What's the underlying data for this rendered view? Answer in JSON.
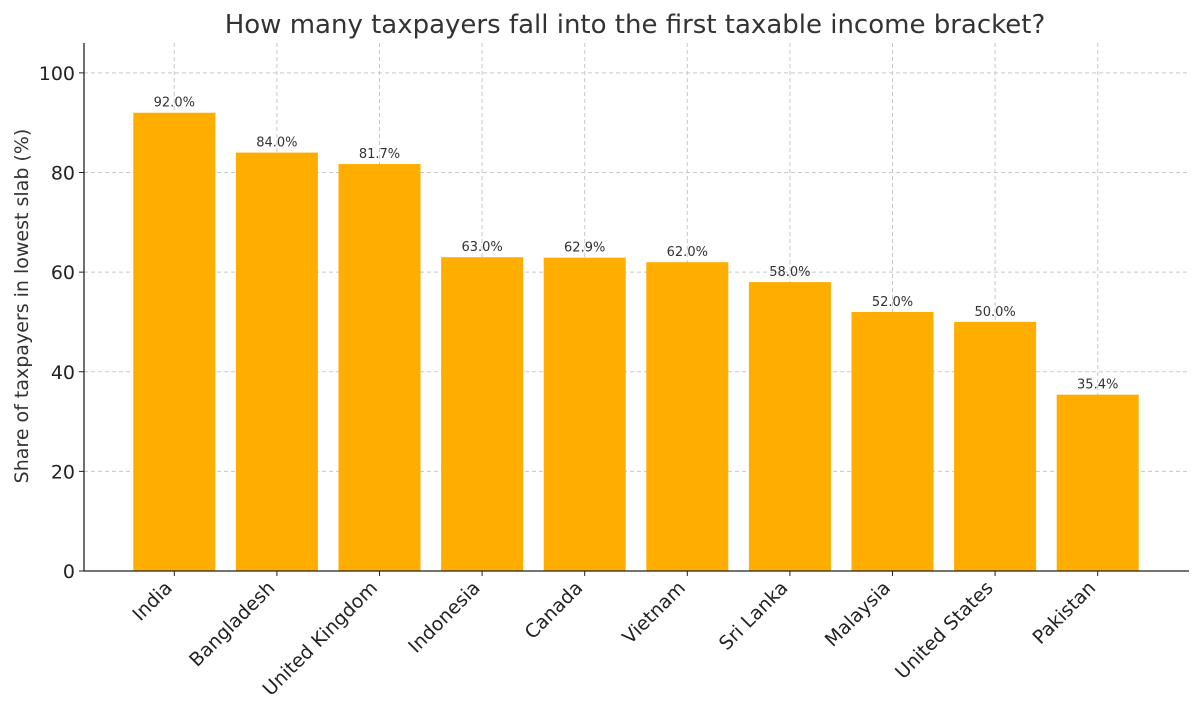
{
  "chart_data": {
    "type": "bar",
    "title": "How many taxpayers fall into the first taxable income bracket?",
    "xlabel": "",
    "ylabel": "Share of taxpayers in lowest slab (%)",
    "categories": [
      "India",
      "Bangladesh",
      "United Kingdom",
      "Indonesia",
      "Canada",
      "Vietnam",
      "Sri Lanka",
      "Malaysia",
      "United States",
      "Pakistan"
    ],
    "values": [
      92.0,
      84.0,
      81.7,
      63.0,
      62.9,
      62.0,
      58.0,
      52.0,
      50.0,
      35.4
    ],
    "data_labels": [
      "92.0%",
      "84.0%",
      "81.7%",
      "63.0%",
      "62.9%",
      "62.0%",
      "58.0%",
      "52.0%",
      "50.0%",
      "35.4%"
    ],
    "yticks": [
      0,
      20,
      40,
      60,
      80,
      100
    ],
    "ylim": [
      0,
      106
    ],
    "grid": true,
    "bar_color": "#FFAE00",
    "grid_color": "#c8c8c8",
    "axis_color": "#222222"
  }
}
